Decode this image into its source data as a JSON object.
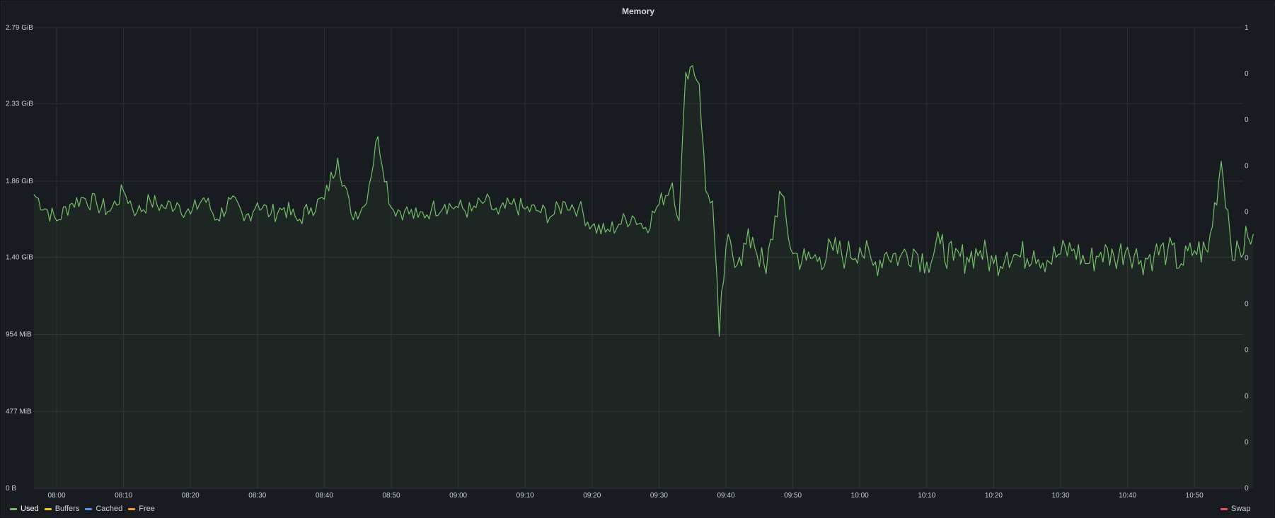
{
  "panel": {
    "title": "Memory"
  },
  "colors": {
    "background": "#181b1f",
    "grid": "#2c2f35",
    "used": "#73bf69",
    "used_fill": "rgba(115,191,105,0.07)",
    "buffers": "#f2cc0c",
    "cached": "#5794f2",
    "free": "#ff9830",
    "swap": "#f2495c"
  },
  "chart_data": {
    "type": "area",
    "title": "Memory",
    "xlabel": "",
    "ylabel": "",
    "y_ticks": [
      "0 B",
      "477 MiB",
      "954 MiB",
      "1.40 GiB",
      "1.86 GiB",
      "2.33 GiB",
      "2.79 GiB"
    ],
    "y_tick_values_gib": [
      0,
      0.466,
      0.932,
      1.4,
      1.86,
      2.33,
      2.79
    ],
    "ylim_gib": [
      0,
      2.79
    ],
    "x_ticks": [
      "08:00",
      "08:10",
      "08:20",
      "08:30",
      "08:40",
      "08:50",
      "09:00",
      "09:10",
      "09:20",
      "09:30",
      "09:40",
      "09:50",
      "10:00",
      "10:10",
      "10:20",
      "10:30",
      "10:40",
      "10:50"
    ],
    "right_axis_ticks": [
      "1",
      "0",
      "0",
      "0",
      "0",
      "0",
      "0",
      "0",
      "0",
      "0",
      "0"
    ],
    "grid": true,
    "legend_position": "bottom",
    "series": [
      {
        "name": "Used",
        "x_minutes_after_0800": [
          -3.4,
          0,
          2,
          4,
          6,
          8,
          10,
          12,
          14,
          16,
          18,
          20,
          22,
          24,
          26,
          28,
          30,
          32,
          34,
          36,
          38,
          40,
          42,
          44,
          46,
          48,
          50,
          52,
          54,
          56,
          58,
          60,
          62,
          64,
          66,
          68,
          70,
          72,
          74,
          76,
          78,
          80,
          82,
          84,
          86,
          88,
          90,
          92,
          93,
          94,
          95,
          96,
          97,
          98,
          99,
          100,
          102,
          104,
          106,
          108,
          110,
          112,
          114,
          116,
          118,
          120,
          122,
          124,
          126,
          128,
          130,
          132,
          134,
          136,
          138,
          140,
          142,
          144,
          146,
          148,
          150,
          152,
          154,
          156,
          158,
          160,
          162,
          164,
          166,
          168,
          170,
          172,
          174,
          176,
          178,
          178.8
        ],
        "y_gib": [
          1.78,
          1.62,
          1.72,
          1.76,
          1.72,
          1.68,
          1.8,
          1.67,
          1.74,
          1.7,
          1.73,
          1.66,
          1.76,
          1.63,
          1.75,
          1.62,
          1.73,
          1.66,
          1.7,
          1.62,
          1.7,
          1.75,
          2.0,
          1.66,
          1.71,
          2.13,
          1.7,
          1.68,
          1.64,
          1.69,
          1.72,
          1.7,
          1.68,
          1.74,
          1.66,
          1.72,
          1.69,
          1.68,
          1.65,
          1.73,
          1.7,
          1.59,
          1.55,
          1.6,
          1.65,
          1.58,
          1.72,
          1.85,
          1.62,
          2.52,
          2.56,
          2.45,
          1.8,
          1.74,
          0.92,
          1.46,
          1.4,
          1.52,
          1.3,
          1.8,
          1.42,
          1.38,
          1.4,
          1.44,
          1.41,
          1.46,
          1.35,
          1.43,
          1.4,
          1.45,
          1.37,
          1.48,
          1.38,
          1.4,
          1.44,
          1.36,
          1.43,
          1.4,
          1.44,
          1.38,
          1.42,
          1.45,
          1.36,
          1.43,
          1.4,
          1.46,
          1.38,
          1.42,
          1.44,
          1.36,
          1.44,
          1.43,
          1.98,
          1.38,
          1.52,
          1.54
        ]
      }
    ]
  },
  "legend": {
    "items": [
      {
        "label": "Used",
        "color": "#73bf69"
      },
      {
        "label": "Buffers",
        "color": "#f2cc0c"
      },
      {
        "label": "Cached",
        "color": "#5794f2"
      },
      {
        "label": "Free",
        "color": "#ff9830"
      }
    ],
    "right_item": {
      "label": "Swap",
      "color": "#f2495c"
    }
  }
}
